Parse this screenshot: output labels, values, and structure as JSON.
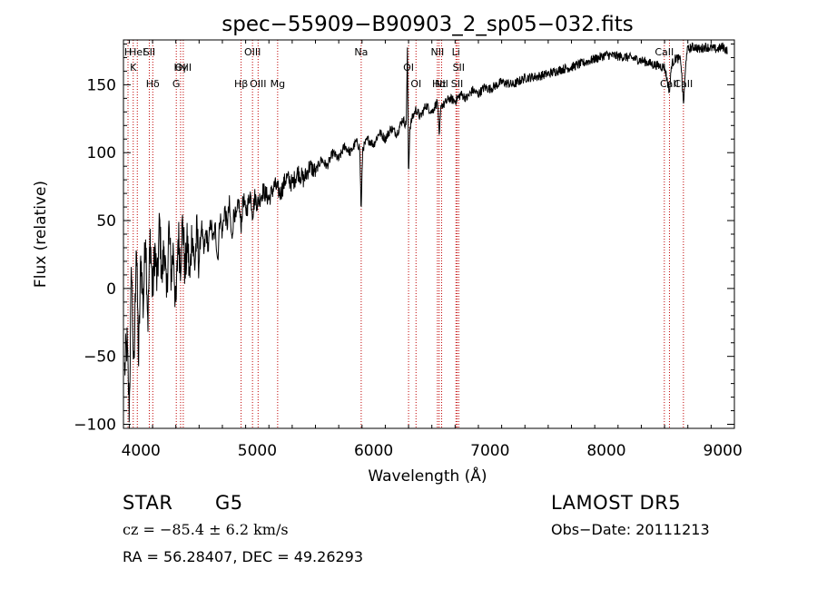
{
  "chart_data": {
    "type": "line",
    "title": "spec−55909−B90903_2_sp05−032.fits",
    "xlabel": "Wavelength (Å)",
    "ylabel": "Flux (relative)",
    "xlim": [
      3850,
      9100
    ],
    "ylim": [
      -103,
      183
    ],
    "xticks": [
      4000,
      5000,
      6000,
      7000,
      8000,
      9000
    ],
    "yticks": [
      -100,
      -50,
      0,
      50,
      100,
      150
    ],
    "ytick_labels": [
      "−100",
      "−50",
      "0",
      "50",
      "100",
      "150"
    ],
    "grid": false,
    "series": [
      {
        "x": [
          3860,
          3880,
          3900,
          3920,
          3940,
          3960,
          3980,
          4000,
          4020,
          4040,
          4060,
          4080,
          4100,
          4120,
          4140,
          4160,
          4180,
          4200,
          4220,
          4240,
          4260,
          4280,
          4300,
          4320,
          4340,
          4360,
          4380,
          4400,
          4420,
          4440,
          4460,
          4480,
          4500,
          4520,
          4540,
          4560,
          4580,
          4600,
          4620,
          4640,
          4660,
          4680,
          4700,
          4720,
          4740,
          4760,
          4780,
          4800,
          4820,
          4840,
          4860,
          4880,
          4900,
          4920,
          4940,
          4960,
          4980,
          5000,
          5050,
          5100,
          5150,
          5200,
          5250,
          5300,
          5350,
          5400,
          5450,
          5500,
          5550,
          5600,
          5650,
          5700,
          5750,
          5800,
          5850,
          5880,
          5893,
          5905,
          5950,
          6000,
          6050,
          6100,
          6150,
          6200,
          6250,
          6280,
          6290,
          6300,
          6310,
          6330,
          6364,
          6400,
          6450,
          6500,
          6550,
          6563,
          6580,
          6600,
          6650,
          6700,
          6750,
          6800,
          6850,
          6900,
          6950,
          7000,
          7100,
          7200,
          7300,
          7400,
          7500,
          7600,
          7700,
          7800,
          7900,
          8000,
          8100,
          8200,
          8300,
          8400,
          8500,
          8542,
          8560,
          8600,
          8640,
          8662,
          8690,
          8720,
          8760,
          8800,
          8850,
          8900,
          8950,
          9000,
          9040
        ],
        "y": [
          -60,
          -40,
          -90,
          20,
          -70,
          40,
          -55,
          25,
          -15,
          45,
          -25,
          40,
          -5,
          30,
          0,
          50,
          5,
          35,
          -10,
          45,
          10,
          30,
          -20,
          40,
          20,
          50,
          10,
          35,
          5,
          45,
          15,
          40,
          20,
          48,
          25,
          42,
          30,
          50,
          35,
          45,
          20,
          55,
          40,
          60,
          45,
          62,
          35,
          58,
          50,
          65,
          45,
          68,
          55,
          62,
          70,
          55,
          68,
          62,
          72,
          66,
          76,
          70,
          82,
          77,
          86,
          80,
          90,
          86,
          95,
          90,
          100,
          95,
          105,
          100,
          108,
          104,
          55,
          103,
          110,
          106,
          115,
          110,
          118,
          114,
          125,
          120,
          175,
          80,
          118,
          125,
          132,
          126,
          135,
          130,
          138,
          110,
          136,
          135,
          140,
          138,
          143,
          140,
          146,
          143,
          148,
          147,
          152,
          150,
          155,
          156,
          158,
          161,
          163,
          166,
          169,
          172,
          171,
          170,
          168,
          165,
          163,
          145,
          165,
          170,
          168,
          135,
          175,
          177,
          178,
          176,
          178,
          177,
          176,
          178,
          175
        ]
      }
    ],
    "lines": [
      {
        "x": 3889,
        "labels": [
          "H"
        ]
      },
      {
        "x": 3934,
        "labels": [
          "K"
        ]
      },
      {
        "x": 3969,
        "labels": [
          "HeI"
        ]
      },
      {
        "x": 4072,
        "labels": [
          "SII"
        ]
      },
      {
        "x": 4102,
        "labels": [
          "Hδ"
        ]
      },
      {
        "x": 4304,
        "labels": [
          "G"
        ]
      },
      {
        "x": 4341,
        "labels": [
          "Hγ"
        ]
      },
      {
        "x": 4364,
        "labels": [
          "OIII"
        ]
      },
      {
        "x": 4861,
        "labels": [
          "Hβ"
        ]
      },
      {
        "x": 4959,
        "labels": [
          "OIII"
        ]
      },
      {
        "x": 5007,
        "labels": [
          "OIII"
        ]
      },
      {
        "x": 5175,
        "labels": [
          "Mg"
        ]
      },
      {
        "x": 5893,
        "labels": [
          "Na"
        ]
      },
      {
        "x": 6300,
        "labels": [
          "OI"
        ]
      },
      {
        "x": 6364,
        "labels": [
          "OI"
        ]
      },
      {
        "x": 6548,
        "labels": [
          "NII"
        ]
      },
      {
        "x": 6563,
        "labels": [
          "Hα"
        ]
      },
      {
        "x": 6584,
        "labels": [
          "NII"
        ]
      },
      {
        "x": 6707,
        "labels": [
          "Li"
        ]
      },
      {
        "x": 6717,
        "labels": [
          "SII"
        ]
      },
      {
        "x": 6731,
        "labels": [
          "SII"
        ]
      },
      {
        "x": 8498,
        "labels": [
          "CaII"
        ]
      },
      {
        "x": 8542,
        "labels": [
          "CaII"
        ]
      },
      {
        "x": 8662,
        "labels": [
          "CaII"
        ]
      }
    ]
  },
  "info": {
    "class": "STAR",
    "subclass": "G5",
    "survey": "LAMOST  DR5",
    "cz": "cz = −85.4 ± 6.2 km/s",
    "obs_date": "Obs−Date: 20111213",
    "radec": "RA =  56.28407, DEC =  49.26293"
  }
}
